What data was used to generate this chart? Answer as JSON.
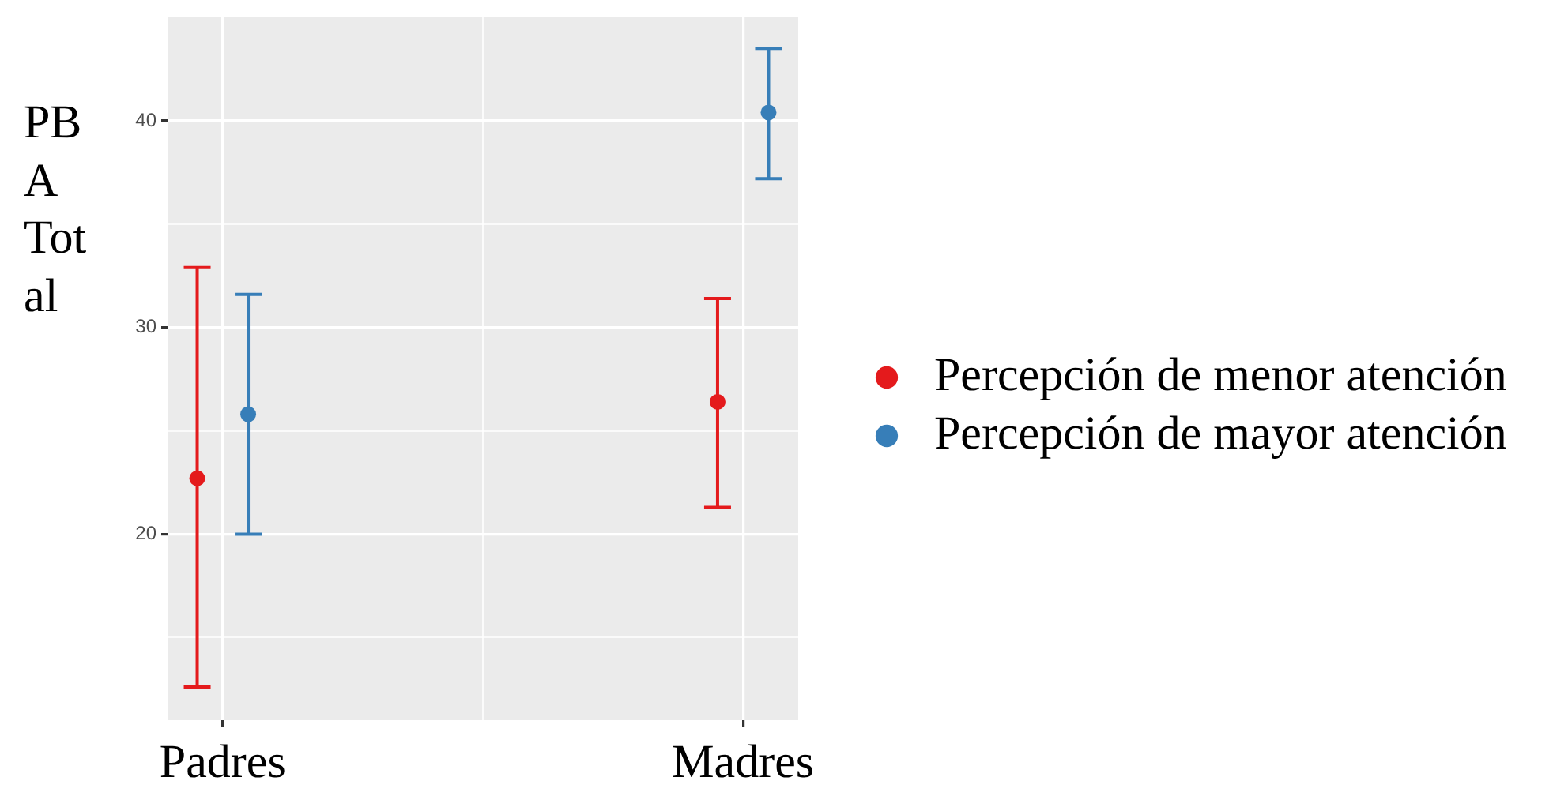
{
  "chart_data": {
    "type": "scatter",
    "ylabel": "PBA Total",
    "categories": [
      "Padres",
      "Madres"
    ],
    "series": [
      {
        "name": "Percepción de menor atención",
        "color": "#e41a1c",
        "values": [
          22.7,
          26.4
        ],
        "errors": [
          [
            12.6,
            32.9
          ],
          [
            21.3,
            31.4
          ]
        ]
      },
      {
        "name": "Percepción de mayor atención",
        "color": "#377eb8",
        "values": [
          25.8,
          40.4
        ],
        "errors": [
          [
            20.0,
            31.6
          ],
          [
            37.2,
            43.5
          ]
        ]
      }
    ],
    "ylim": [
      11,
      45
    ],
    "yticks": [
      {
        "value": 15,
        "label": null
      },
      20,
      {
        "value": 25,
        "label": null
      },
      30,
      {
        "value": 35,
        "label": null
      },
      40
    ],
    "grid": true,
    "legend": "right",
    "marker": "circle"
  }
}
